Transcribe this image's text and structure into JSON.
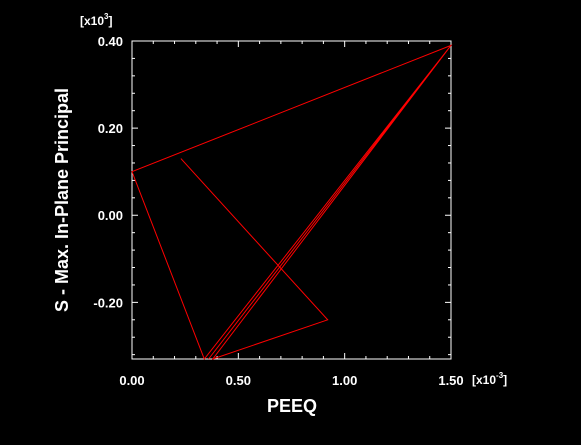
{
  "chart_data": {
    "type": "line",
    "title": "",
    "xlabel": "PEEQ",
    "ylabel": "S - Max. In-Plane Principal",
    "x_multiplier": {
      "base": "[x10",
      "exponent": "-3",
      "close": "]"
    },
    "y_multiplier": {
      "base": "[x10",
      "exponent": "3",
      "close": "]"
    },
    "xlim": [
      0.0,
      1.5
    ],
    "ylim": [
      -0.33,
      0.4
    ],
    "x_ticks": [
      0.0,
      0.5,
      1.0,
      1.5
    ],
    "x_tick_labels": [
      "0.00",
      "0.50",
      "1.00",
      "1.50"
    ],
    "y_ticks": [
      -0.2,
      0.0,
      0.2,
      0.4
    ],
    "y_tick_labels": [
      "-0.20",
      "0.00",
      "0.20",
      "0.40"
    ],
    "grid": false,
    "series": [
      {
        "color": "#ff0000",
        "x": [
          0.23,
          0.92,
          0.38,
          1.5,
          0.0,
          0.34,
          1.5,
          0.36
        ],
        "y": [
          0.13,
          -0.24,
          -0.33,
          0.39,
          0.1,
          -0.33,
          0.39,
          -0.33
        ]
      }
    ],
    "colors": {
      "background": "#000000",
      "axes": "#ffffff",
      "text": "#ffffff",
      "line": "#ff0000"
    }
  }
}
